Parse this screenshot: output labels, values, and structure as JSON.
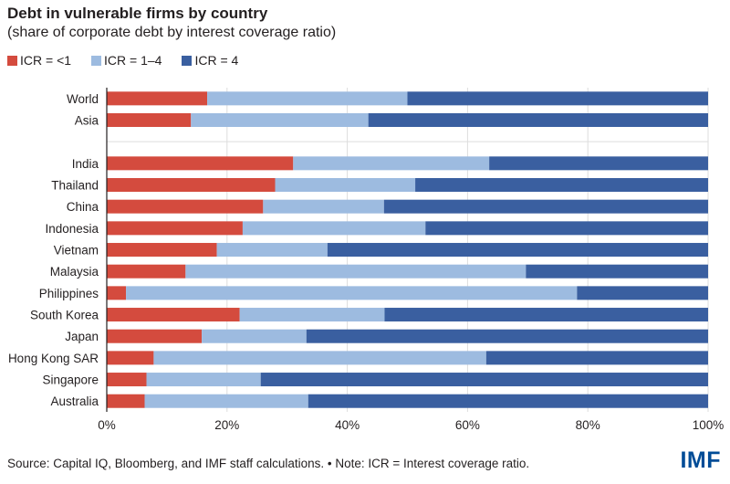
{
  "title": "Debt in vulnerable firms by country",
  "subtitle": "(share of corporate debt by interest coverage ratio)",
  "colors": {
    "icr_lt1": "#d44b3e",
    "icr_1_4": "#9dbbe0",
    "icr_4": "#3a5fa0",
    "grid": "#dddddd",
    "axis": "#231f20"
  },
  "legend": [
    {
      "label": "ICR = <1",
      "color": "#d44b3e"
    },
    {
      "label": "ICR = 1–4",
      "color": "#9dbbe0"
    },
    {
      "label": "ICR = 4",
      "color": "#3a5fa0"
    }
  ],
  "chart_data": {
    "type": "bar",
    "orientation": "horizontal",
    "stacked": true,
    "categories": [
      "World",
      "Asia",
      "",
      "India",
      "Thailand",
      "China",
      "Indonesia",
      "Vietnam",
      "Malaysia",
      "Philippines",
      "South Korea",
      "Japan",
      "Hong Kong SAR",
      "Singapore",
      "Australia"
    ],
    "series": [
      {
        "name": "ICR = <1",
        "values": [
          16.7,
          14.0,
          null,
          31.0,
          28.0,
          26.0,
          22.6,
          18.3,
          13.1,
          3.2,
          22.1,
          15.8,
          7.8,
          6.6,
          6.3
        ]
      },
      {
        "name": "ICR = 1–4",
        "values": [
          33.3,
          29.5,
          null,
          32.6,
          23.3,
          20.1,
          30.4,
          18.4,
          56.6,
          75.0,
          24.1,
          17.4,
          55.3,
          19.0,
          27.2
        ]
      },
      {
        "name": "ICR = 4",
        "values": [
          50.0,
          56.5,
          null,
          36.4,
          48.7,
          53.9,
          47.0,
          63.3,
          30.3,
          21.8,
          53.8,
          66.8,
          36.9,
          74.4,
          66.5
        ]
      }
    ],
    "xlim": [
      0,
      100
    ],
    "xticks": [
      "0%",
      "20%",
      "40%",
      "60%",
      "80%",
      "100%"
    ],
    "grid": true
  },
  "footer": "Source: Capital IQ, Bloomberg, and IMF staff calculations. • Note: ICR = Interest coverage ratio.",
  "logo": "IMF"
}
